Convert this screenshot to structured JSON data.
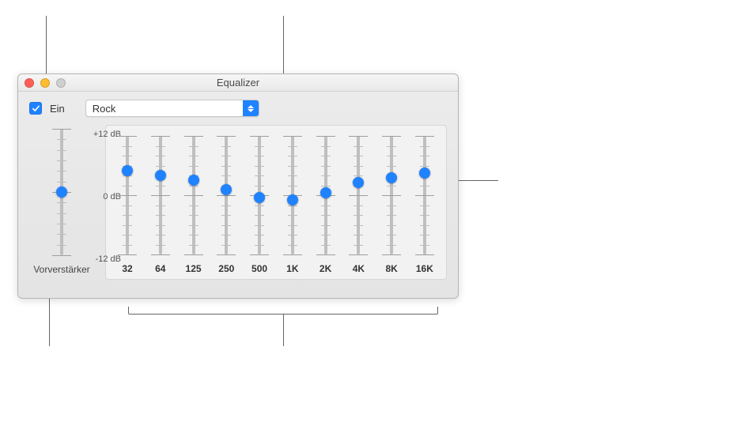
{
  "callouts": {
    "line_color": "#656565"
  },
  "window": {
    "title": "Equalizer",
    "traffic": {
      "close": "#ff5f57",
      "min": "#febc2e",
      "max": "#cfcfcf"
    }
  },
  "enable": {
    "checked": true,
    "label": "Ein",
    "accent": "#1f82ff"
  },
  "preset": {
    "selected": "Rock",
    "accent": "#1f82ff"
  },
  "db_scale": {
    "top": "+12 dB",
    "mid": "0 dB",
    "bot": "-12 dB",
    "range": [
      -12,
      12
    ]
  },
  "preamp": {
    "label": "Vorverstärker",
    "value_db": 0
  },
  "bands": [
    {
      "hz_label": "32",
      "value_db": 5.0
    },
    {
      "hz_label": "64",
      "value_db": 4.0
    },
    {
      "hz_label": "125",
      "value_db": 3.0
    },
    {
      "hz_label": "250",
      "value_db": 1.2
    },
    {
      "hz_label": "500",
      "value_db": -0.5
    },
    {
      "hz_label": "1K",
      "value_db": -1.0
    },
    {
      "hz_label": "2K",
      "value_db": 0.5
    },
    {
      "hz_label": "4K",
      "value_db": 2.5
    },
    {
      "hz_label": "8K",
      "value_db": 3.5
    },
    {
      "hz_label": "16K",
      "value_db": 4.5
    }
  ],
  "style": {
    "thumb_color": "#1f82ff",
    "track_color": "#bfbfbf",
    "panel_bg": "#f2f2f2",
    "window_bg": "#e8e8e8"
  }
}
